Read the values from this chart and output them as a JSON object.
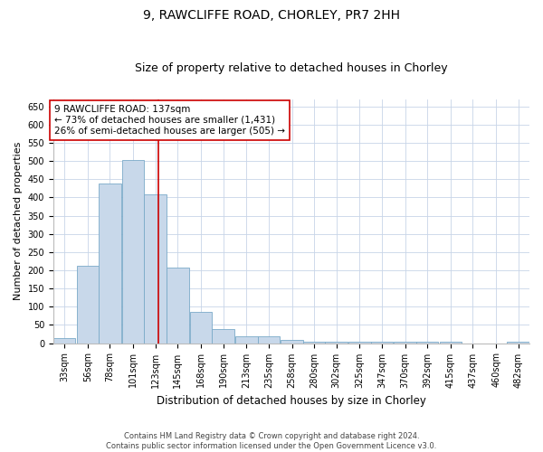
{
  "title1": "9, RAWCLIFFE ROAD, CHORLEY, PR7 2HH",
  "title2": "Size of property relative to detached houses in Chorley",
  "xlabel": "Distribution of detached houses by size in Chorley",
  "ylabel": "Number of detached properties",
  "footer1": "Contains HM Land Registry data © Crown copyright and database right 2024.",
  "footer2": "Contains public sector information licensed under the Open Government Licence v3.0.",
  "annotation_line1": "9 RAWCLIFFE ROAD: 137sqm",
  "annotation_line2": "← 73% of detached houses are smaller (1,431)",
  "annotation_line3": "26% of semi-detached houses are larger (505) →",
  "bar_color": "#c8d8ea",
  "bar_edge_color": "#7aaac8",
  "vline_color": "#cc0000",
  "vline_x": 137,
  "annotation_box_color": "#cc0000",
  "categories": [
    33,
    56,
    78,
    101,
    123,
    145,
    168,
    190,
    213,
    235,
    258,
    280,
    302,
    325,
    347,
    370,
    392,
    415,
    437,
    460,
    482
  ],
  "bin_labels": [
    "33sqm",
    "56sqm",
    "78sqm",
    "101sqm",
    "123sqm",
    "145sqm",
    "168sqm",
    "190sqm",
    "213sqm",
    "235sqm",
    "258sqm",
    "280sqm",
    "302sqm",
    "325sqm",
    "347sqm",
    "370sqm",
    "392sqm",
    "415sqm",
    "437sqm",
    "460sqm",
    "482sqm"
  ],
  "values": [
    15,
    212,
    437,
    502,
    408,
    207,
    85,
    38,
    18,
    18,
    10,
    5,
    4,
    4,
    3,
    3,
    3,
    3,
    0,
    0,
    4
  ],
  "ylim": [
    0,
    670
  ],
  "yticks": [
    0,
    50,
    100,
    150,
    200,
    250,
    300,
    350,
    400,
    450,
    500,
    550,
    600,
    650
  ],
  "bin_width": 22,
  "title1_fontsize": 10,
  "title2_fontsize": 9,
  "xlabel_fontsize": 8.5,
  "ylabel_fontsize": 8,
  "tick_fontsize": 7,
  "annotation_fontsize": 7.5,
  "footer_fontsize": 6,
  "background_color": "#ffffff",
  "grid_color": "#c8d4e8"
}
